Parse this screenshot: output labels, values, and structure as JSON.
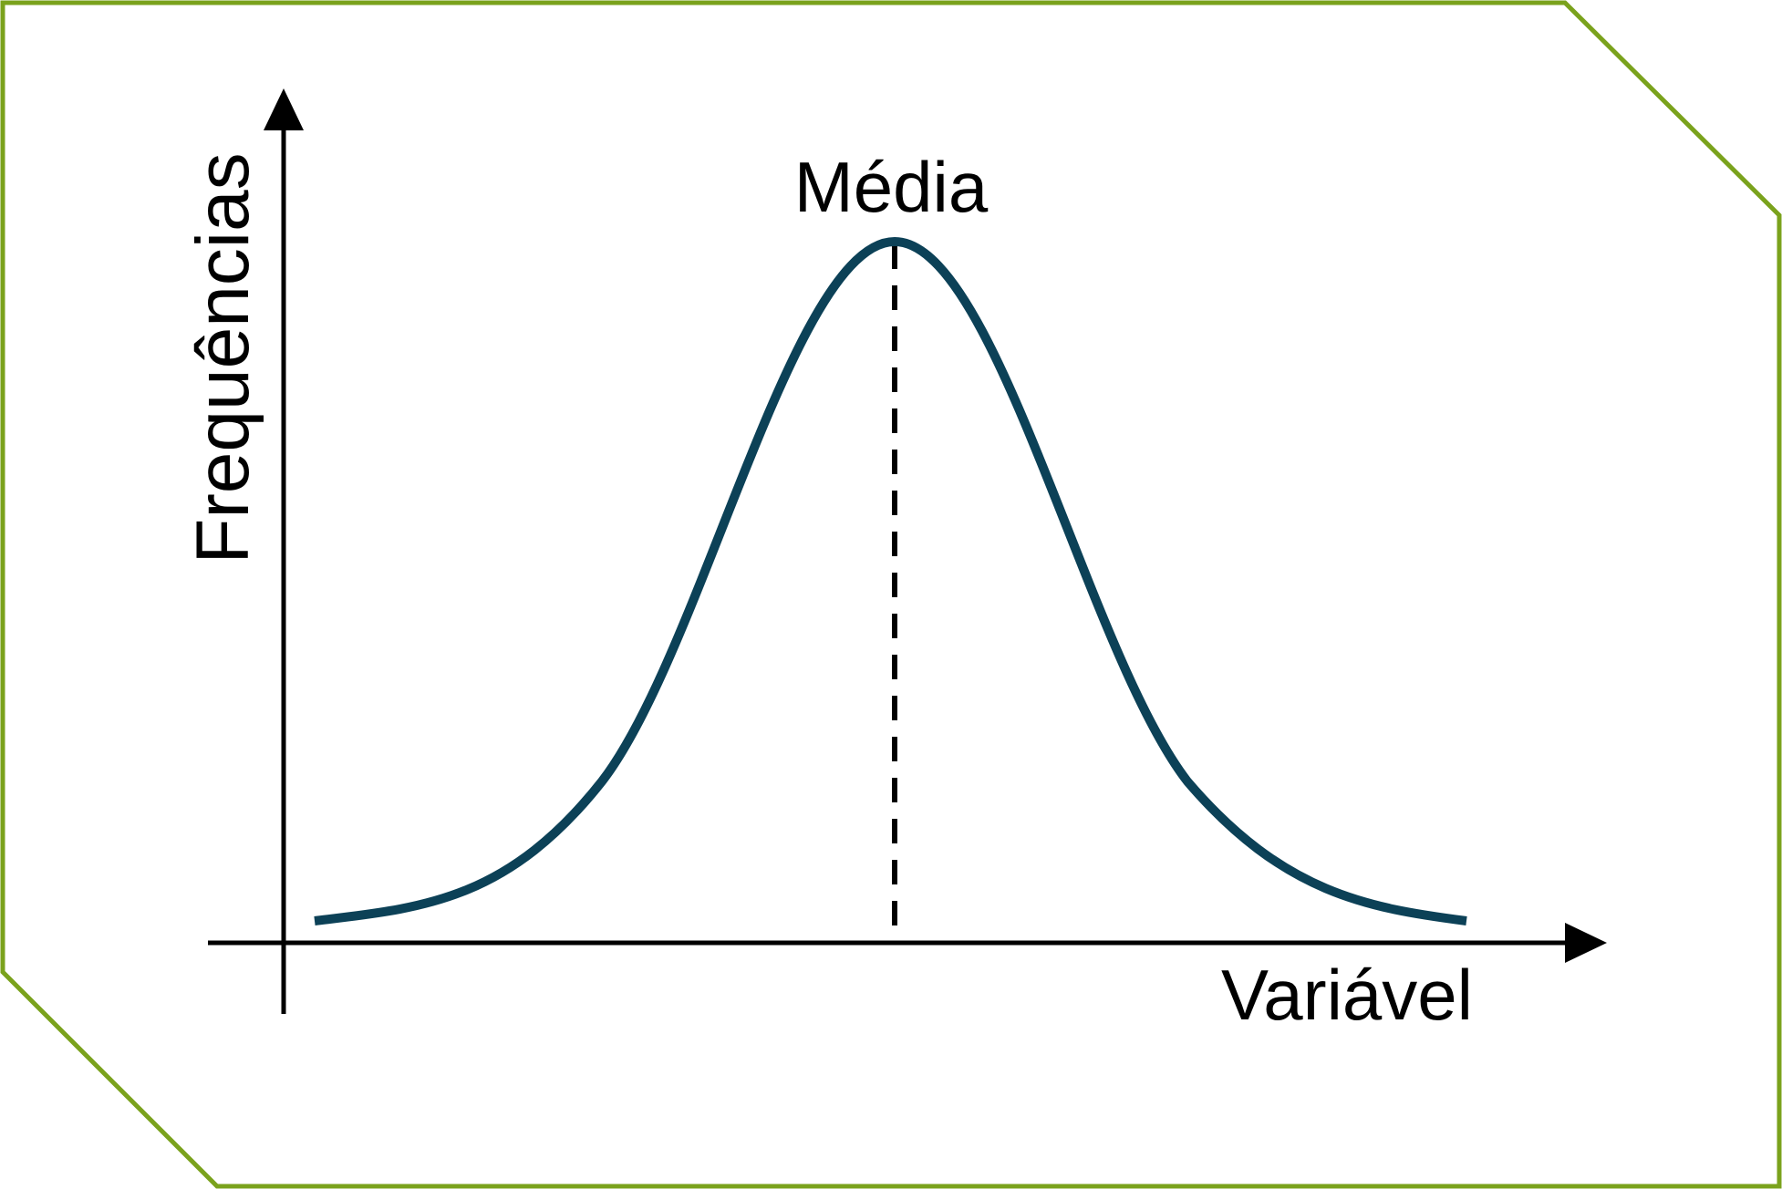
{
  "labels": {
    "y_axis": "Frequências",
    "x_axis": "Variável",
    "mean": "Média"
  },
  "colors": {
    "frame": "#7aa21c",
    "curve": "#0c4157",
    "axes": "#000000",
    "mean_line": "#000000",
    "background": "#ffffff"
  }
}
